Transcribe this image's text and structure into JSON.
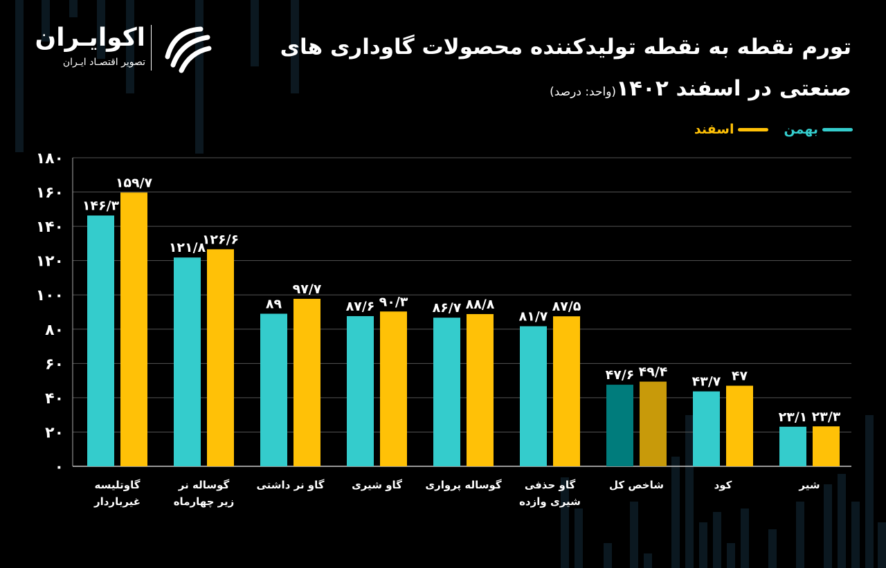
{
  "header": {
    "title_line1": "تورم نقطه به نقطه تولیدکننده محصولات گاوداری های",
    "title_line2": "صنعتی در اسفند ۱۴۰۲",
    "unit_note": "(واحد: درصد)"
  },
  "brand": {
    "name": "اکوایـران",
    "tagline": "تصویر اقتصـاد ایـران",
    "icon": "ekoiran-logo-mark"
  },
  "colors": {
    "bahman": "#34CCCC",
    "esfand": "#FFC107",
    "bahman_highlight": "#007C7C",
    "esfand_highlight": "#C89A0A",
    "grid": "#555555",
    "background": "#000000"
  },
  "chart_data": {
    "type": "bar",
    "categories": [
      [
        "گاوتلیسه",
        "غیرباردار"
      ],
      [
        "گوساله نر",
        "زیر چهارماه"
      ],
      [
        "گاو نر داشتی"
      ],
      [
        "گاو شیری"
      ],
      [
        "گوساله پرواری"
      ],
      [
        "گاو حذفی",
        "شیری وازده"
      ],
      [
        "شاخص کل"
      ],
      [
        "کود"
      ],
      [
        "شیر"
      ]
    ],
    "series": [
      {
        "name": "بهمن",
        "values": [
          146.3,
          121.8,
          89,
          87.6,
          86.7,
          81.7,
          47.6,
          43.7,
          23.1
        ],
        "labels": [
          "۱۴۶/۳",
          "۱۲۱/۸",
          "۸۹",
          "۸۷/۶",
          "۸۶/۷",
          "۸۱/۷",
          "۴۷/۶",
          "۴۳/۷",
          "۲۳/۱"
        ]
      },
      {
        "name": "اسفند",
        "values": [
          159.7,
          126.6,
          97.7,
          90.3,
          88.8,
          87.5,
          49.4,
          47,
          23.3
        ],
        "labels": [
          "۱۵۹/۷",
          "۱۲۶/۶",
          "۹۷/۷",
          "۹۰/۳",
          "۸۸/۸",
          "۸۷/۵",
          "۴۹/۴",
          "۴۷",
          "۲۳/۳"
        ]
      }
    ],
    "highlight_index": 6,
    "ylim": [
      0,
      180
    ],
    "yticks": [
      0,
      20,
      40,
      60,
      80,
      100,
      120,
      140,
      160,
      180
    ],
    "ytick_labels": [
      "۰",
      "۲۰",
      "۴۰",
      "۶۰",
      "۸۰",
      "۱۰۰",
      "۱۲۰",
      "۱۴۰",
      "۱۶۰",
      "۱۸۰"
    ],
    "grid": true,
    "legend_position": "top-right"
  }
}
